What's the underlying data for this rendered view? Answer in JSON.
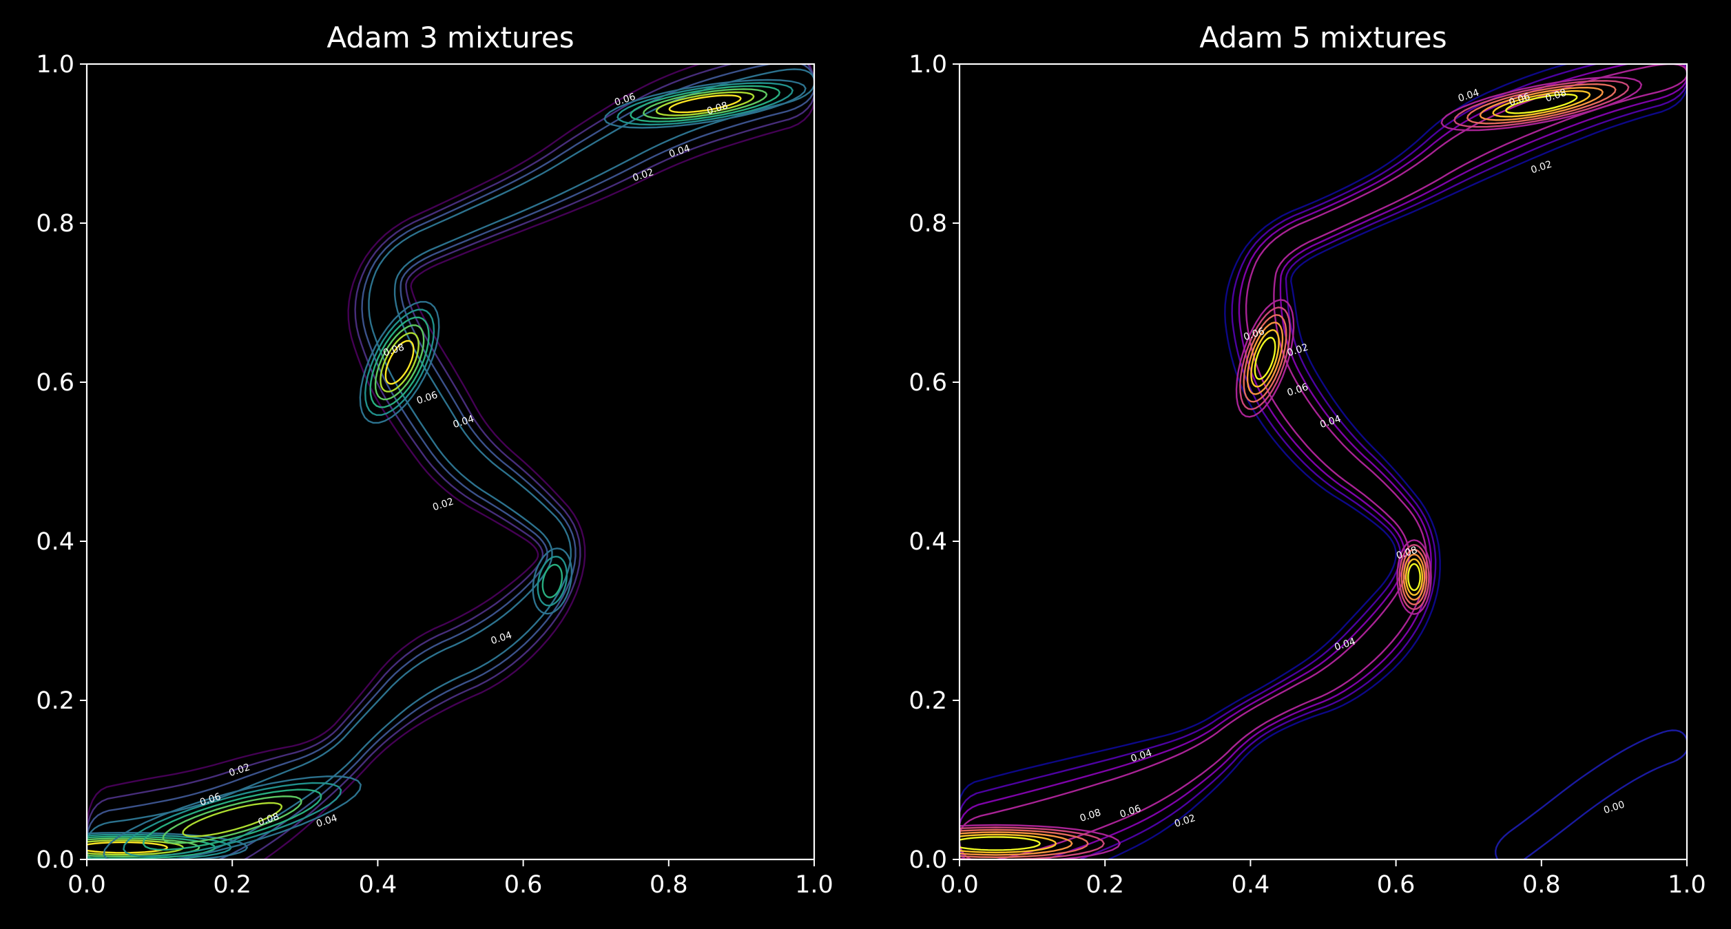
{
  "chart_data": [
    {
      "type": "contour",
      "title": "Adam 3 mixtures",
      "colormap": "viridis",
      "xlim": [
        0.0,
        1.0
      ],
      "ylim": [
        0.0,
        1.0
      ],
      "xticks": [
        "0.0",
        "0.2",
        "0.4",
        "0.6",
        "0.8",
        "1.0"
      ],
      "yticks": [
        "0.0",
        "0.2",
        "0.4",
        "0.6",
        "0.8",
        "1.0"
      ],
      "contour_levels": [
        0.01,
        0.02,
        0.03,
        0.04,
        0.05,
        0.06,
        0.07,
        0.08,
        0.09
      ],
      "contour_labels": [
        {
          "text": "0.02",
          "x": 0.21,
          "y": 0.112
        },
        {
          "text": "0.06",
          "x": 0.17,
          "y": 0.075
        },
        {
          "text": "0.08",
          "x": 0.25,
          "y": 0.05
        },
        {
          "text": "0.04",
          "x": 0.33,
          "y": 0.048
        },
        {
          "text": "0.06",
          "x": 0.74,
          "y": 0.955
        },
        {
          "text": "0.08",
          "x": 0.867,
          "y": 0.944
        },
        {
          "text": "0.04",
          "x": 0.815,
          "y": 0.89
        },
        {
          "text": "0.02",
          "x": 0.765,
          "y": 0.86
        },
        {
          "text": "0.08",
          "x": 0.422,
          "y": 0.64
        },
        {
          "text": "0.06",
          "x": 0.468,
          "y": 0.58
        },
        {
          "text": "0.04",
          "x": 0.518,
          "y": 0.55
        },
        {
          "text": "0.02",
          "x": 0.49,
          "y": 0.446
        },
        {
          "text": "0.04",
          "x": 0.57,
          "y": 0.278
        }
      ],
      "peaks": [
        {
          "x": 0.05,
          "y": 0.015,
          "density": 0.09
        },
        {
          "x": 0.85,
          "y": 0.95,
          "density": 0.09
        },
        {
          "x": 0.43,
          "y": 0.63,
          "density": 0.09
        },
        {
          "x": 0.65,
          "y": 0.35,
          "density": 0.06
        }
      ]
    },
    {
      "type": "contour",
      "title": "Adam 5 mixtures",
      "colormap": "plasma",
      "xlim": [
        0.0,
        1.0
      ],
      "ylim": [
        0.0,
        1.0
      ],
      "xticks": [
        "0.0",
        "0.2",
        "0.4",
        "0.6",
        "0.8",
        "1.0"
      ],
      "yticks": [
        "0.0",
        "0.2",
        "0.4",
        "0.6",
        "0.8",
        "1.0"
      ],
      "contour_levels": [
        0.01,
        0.02,
        0.03,
        0.04,
        0.05,
        0.06,
        0.07,
        0.08,
        0.09
      ],
      "contour_labels": [
        {
          "text": "0.04",
          "x": 0.7,
          "y": 0.96
        },
        {
          "text": "0.06",
          "x": 0.77,
          "y": 0.955
        },
        {
          "text": "0.08",
          "x": 0.82,
          "y": 0.96
        },
        {
          "text": "0.02",
          "x": 0.8,
          "y": 0.87
        },
        {
          "text": "0.06",
          "x": 0.405,
          "y": 0.66
        },
        {
          "text": "0.02",
          "x": 0.465,
          "y": 0.64
        },
        {
          "text": "0.06",
          "x": 0.465,
          "y": 0.59
        },
        {
          "text": "0.04",
          "x": 0.51,
          "y": 0.55
        },
        {
          "text": "0.08",
          "x": 0.615,
          "y": 0.385
        },
        {
          "text": "0.04",
          "x": 0.53,
          "y": 0.27
        },
        {
          "text": "0.04",
          "x": 0.25,
          "y": 0.13
        },
        {
          "text": "0.08",
          "x": 0.18,
          "y": 0.055
        },
        {
          "text": "0.06",
          "x": 0.235,
          "y": 0.06
        },
        {
          "text": "0.02",
          "x": 0.31,
          "y": 0.048
        },
        {
          "text": "0.00",
          "x": 0.9,
          "y": 0.065
        }
      ],
      "peaks": [
        {
          "x": 0.05,
          "y": 0.02,
          "density": 0.09
        },
        {
          "x": 0.8,
          "y": 0.95,
          "density": 0.09
        },
        {
          "x": 0.42,
          "y": 0.63,
          "density": 0.09
        },
        {
          "x": 0.625,
          "y": 0.355,
          "density": 0.09
        }
      ]
    }
  ]
}
